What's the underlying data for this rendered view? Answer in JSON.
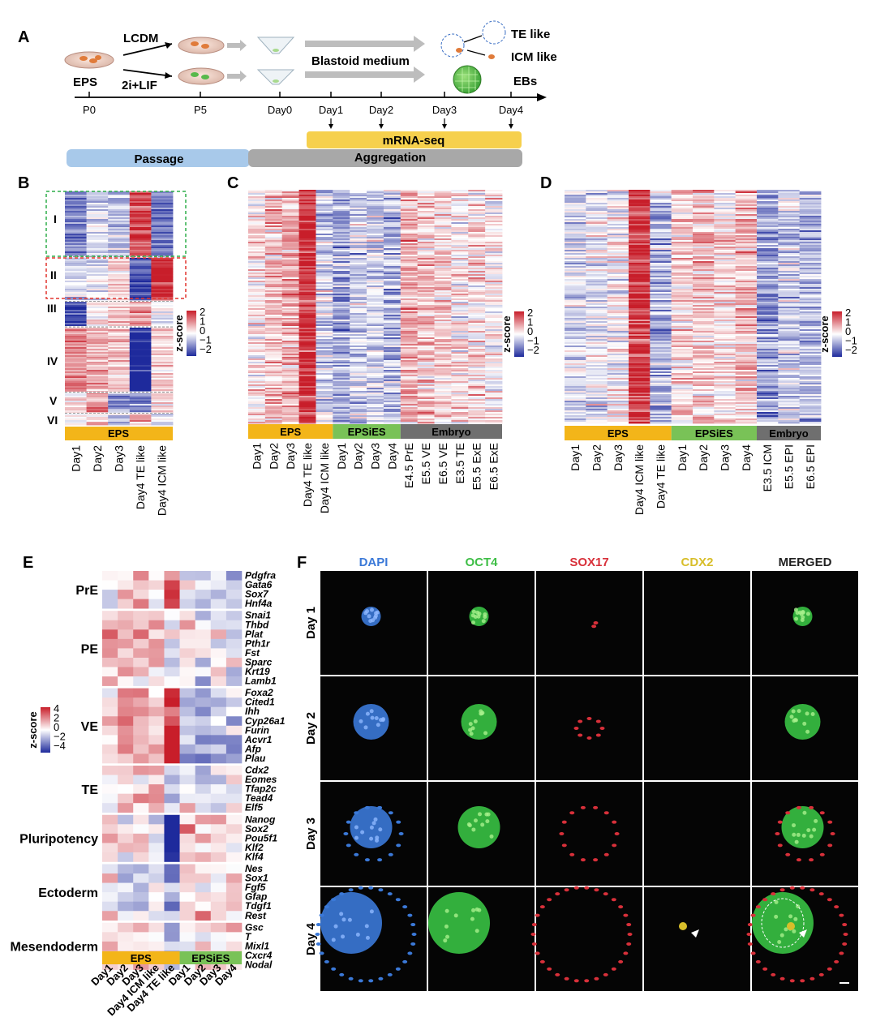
{
  "panels": {
    "a": {
      "letter": "A",
      "conditions": [
        "LCDM",
        "2i+LIF"
      ],
      "source": "EPS",
      "medium": "Blastoid medium",
      "outcomes": [
        "TE like",
        "ICM like",
        "EBs"
      ],
      "timeline": [
        "P0",
        "P5",
        "Day0",
        "Day1",
        "Day2",
        "Day3",
        "Day4"
      ],
      "seq_label": "mRNA-seq",
      "phase_passage": "Passage",
      "phase_aggregation": "Aggregation"
    },
    "b": {
      "letter": "B",
      "clusters": [
        "I",
        "II",
        "III",
        "IV",
        "V",
        "VI"
      ],
      "group": "EPS",
      "columns": [
        "Day1",
        "Day2",
        "Day3",
        "Day4 TE like",
        "Day4 ICM like"
      ],
      "legend_title": "z-score",
      "legend_ticks": [
        "2",
        "1",
        "0",
        "−1",
        "−2"
      ]
    },
    "c": {
      "letter": "C",
      "groups": [
        "EPS",
        "EPSiES",
        "Embryo"
      ],
      "columns": [
        "Day1",
        "Day2",
        "Day3",
        "Day4 TE like",
        "Day4 ICM like",
        "Day1",
        "Day2",
        "Day3",
        "Day4",
        "E4.5 PrE",
        "E5.5 VE",
        "E6.5 VE",
        "E3.5 TE",
        "E5.5 ExE",
        "E6.5 ExE"
      ],
      "legend_title": "z-score",
      "legend_ticks": [
        "2",
        "1",
        "0",
        "−1",
        "−2"
      ]
    },
    "d": {
      "letter": "D",
      "groups": [
        "EPS",
        "EPSiES",
        "Embryo"
      ],
      "columns": [
        "Day1",
        "Day2",
        "Day3",
        "Day4 ICM like",
        "Day4 TE like",
        "Day1",
        "Day2",
        "Day3",
        "Day4",
        "E3.5 ICM",
        "E5.5 EPI",
        "E6.5 EPI"
      ],
      "legend_title": "z-score",
      "legend_ticks": [
        "2",
        "1",
        "0",
        "−1",
        "−2"
      ]
    },
    "e": {
      "letter": "E",
      "categories": [
        {
          "name": "PrE",
          "genes": [
            "Pdgfra",
            "Gata6",
            "Sox7",
            "Hnf4a"
          ]
        },
        {
          "name": "PE",
          "genes": [
            "Snai1",
            "Thbd",
            "Plat",
            "Pth1r",
            "Fst",
            "Sparc",
            "Krt19",
            "Lamb1"
          ]
        },
        {
          "name": "VE",
          "genes": [
            "Foxa2",
            "Cited1",
            "Ihh",
            "Cyp26a1",
            "Furin",
            "Acvr1",
            "Afp",
            "Plau"
          ]
        },
        {
          "name": "TE",
          "genes": [
            "Cdx2",
            "Eomes",
            "Tfap2c",
            "Tead4",
            "Elf5"
          ]
        },
        {
          "name": "Pluripotency",
          "genes": [
            "Nanog",
            "Sox2",
            "Pou5f1",
            "Klf2",
            "Klf4"
          ]
        },
        {
          "name": "Ectoderm",
          "genes": [
            "Nes",
            "Sox1",
            "Fgf5",
            "Gfap",
            "Tdgf1",
            "Rest"
          ]
        },
        {
          "name": "Mesendoderm",
          "genes": [
            "Gsc",
            "T",
            "Mixl1",
            "Cxcr4",
            "Nodal"
          ]
        }
      ],
      "groups": [
        "EPS",
        "EPSiES"
      ],
      "columns": [
        "Day1",
        "Day2",
        "Day3",
        "Day4 ICM like",
        "Day4 TE like",
        "Day1",
        "Day2",
        "Day3",
        "Day4"
      ],
      "legend_title": "z-score",
      "legend_ticks": [
        "4",
        "2",
        "0",
        "−2",
        "−4"
      ]
    },
    "f": {
      "letter": "F",
      "channels": [
        "DAPI",
        "OCT4",
        "SOX17",
        "CDX2",
        "MERGED"
      ],
      "rows": [
        "Day 1",
        "Day 2",
        "Day 3",
        "Day 4"
      ]
    }
  },
  "colors": {
    "high": "#c81e2a",
    "low": "#1e2a9c",
    "mid": "#ffffff",
    "eps": "#f3b519",
    "epsies": "#79c257",
    "embryo": "#6f6f6f",
    "passage": "#a8c9ea",
    "aggregation": "#a8a8a8",
    "mrnaseq": "#f6d04d",
    "dapi": "#3b79d8",
    "oct4": "#3ebe46",
    "sox17": "#d8303a",
    "cdx2": "#d8be2a",
    "box_cluster_I": "#2fae4a",
    "box_cluster_II": "#e2352e"
  }
}
